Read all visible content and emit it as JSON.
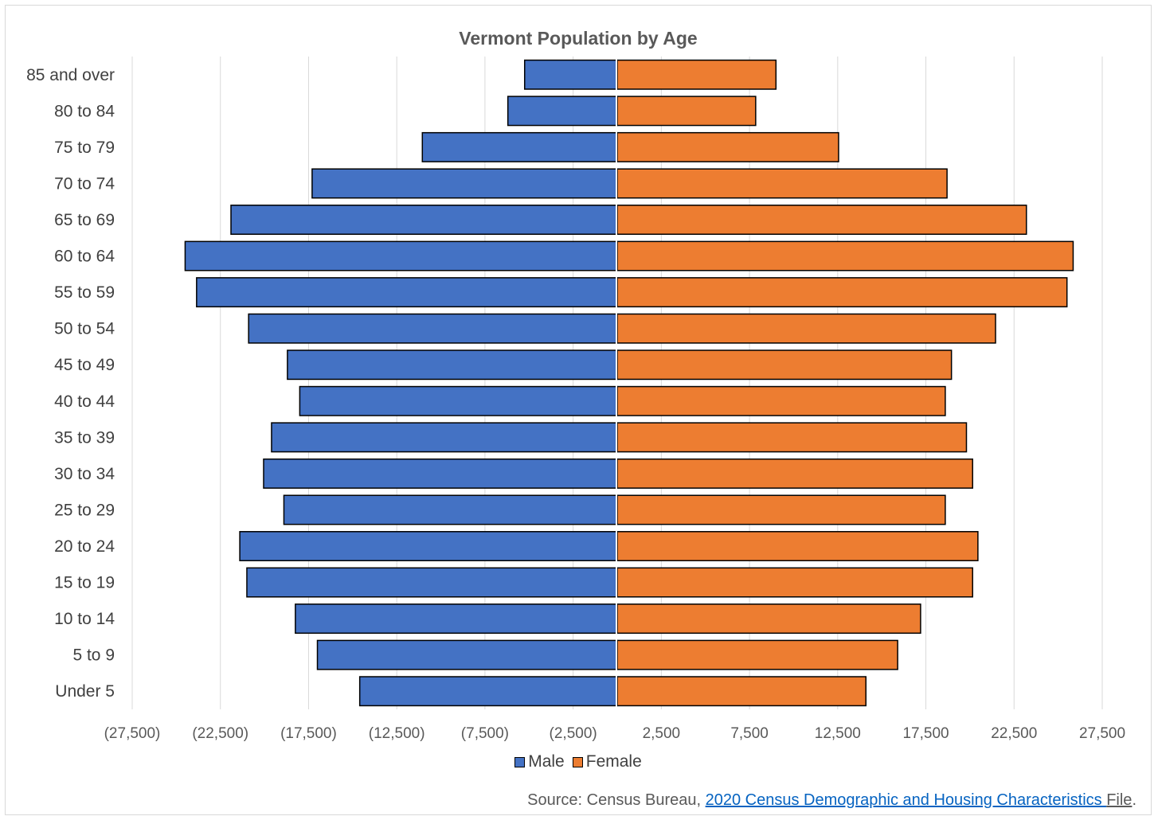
{
  "chart_data": {
    "type": "bar",
    "orientation": "horizontal",
    "title": "Vermont Population by Age",
    "categories": [
      "Under 5",
      "5 to 9",
      "10 to 14",
      "15 to 19",
      "20 to 24",
      "25 to 29",
      "30 to 34",
      "35 to 39",
      "40 to 44",
      "45 to 49",
      "50 to 54",
      "55 to 59",
      "60 to 64",
      "65 to 69",
      "70 to 74",
      "75 to 79",
      "80 to 84",
      "85 and over"
    ],
    "series": [
      {
        "name": "Male",
        "color": "#4472c4",
        "values": [
          -14600,
          -17000,
          -18250,
          -21000,
          -21400,
          -18900,
          -20050,
          -19600,
          -18000,
          -18700,
          -20900,
          -23850,
          -24500,
          -21900,
          -17300,
          -11050,
          -6200,
          -5250
        ]
      },
      {
        "name": "Female",
        "color": "#ed7d31",
        "values": [
          14100,
          15900,
          17200,
          20150,
          20450,
          18600,
          20150,
          19800,
          18600,
          18950,
          21450,
          25500,
          25850,
          23200,
          18700,
          12550,
          7850,
          9000
        ]
      }
    ],
    "xlim": [
      -27500,
      27500
    ],
    "xticks": [
      -27500,
      -22500,
      -17500,
      -12500,
      -7500,
      -2500,
      2500,
      7500,
      12500,
      17500,
      22500,
      27500
    ],
    "xtick_labels": [
      "(27,500)",
      "(22,500)",
      "(17,500)",
      "(12,500)",
      "(7,500)",
      "(2,500)",
      "2,500",
      "7,500",
      "12,500",
      "17,500",
      "22,500",
      "27,500"
    ],
    "grid": "vertical",
    "legend": "bottom"
  },
  "source": {
    "prefix": "Source: Census Bureau, ",
    "link_text": "2020 Census Demographic and Housing Characteristics ",
    "suffix_word": "File",
    "period": "."
  }
}
